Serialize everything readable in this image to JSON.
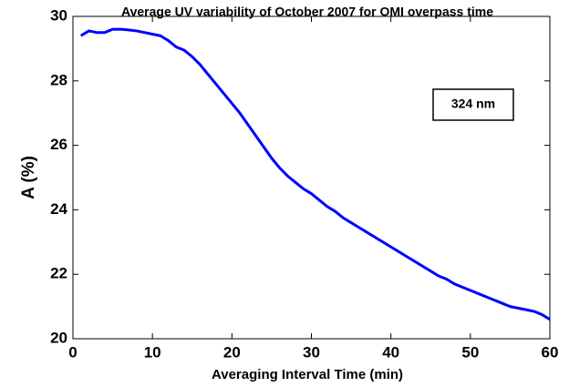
{
  "chart_data": {
    "type": "line",
    "title": "Average UV variability of October 2007 for OMI overpass time",
    "xlabel": "Averaging Interval Time (min)",
    "ylabel": "A (%)",
    "annotation": "324 nm",
    "color": "#0000ff",
    "x": [
      1,
      2,
      3,
      4,
      5,
      6,
      7,
      8,
      9,
      10,
      11,
      12,
      13,
      14,
      15,
      16,
      17,
      18,
      19,
      20,
      21,
      22,
      23,
      24,
      25,
      26,
      27,
      28,
      29,
      30,
      31,
      32,
      33,
      34,
      35,
      36,
      37,
      38,
      39,
      40,
      41,
      42,
      43,
      44,
      45,
      46,
      47,
      48,
      49,
      50,
      51,
      52,
      53,
      54,
      55,
      56,
      57,
      58,
      59,
      60
    ],
    "values": [
      29.4,
      29.55,
      29.5,
      29.5,
      29.6,
      29.6,
      29.58,
      29.55,
      29.5,
      29.45,
      29.4,
      29.25,
      29.05,
      28.95,
      28.75,
      28.5,
      28.2,
      27.9,
      27.6,
      27.3,
      27.0,
      26.65,
      26.3,
      25.95,
      25.6,
      25.3,
      25.05,
      24.85,
      24.65,
      24.5,
      24.3,
      24.1,
      23.95,
      23.75,
      23.6,
      23.45,
      23.3,
      23.15,
      23.0,
      22.85,
      22.7,
      22.55,
      22.4,
      22.25,
      22.1,
      21.95,
      21.85,
      21.7,
      21.6,
      21.5,
      21.4,
      21.3,
      21.2,
      21.1,
      21.0,
      20.95,
      20.9,
      20.85,
      20.75,
      20.6
    ],
    "xlim": [
      0,
      60
    ],
    "xticks": [
      0,
      10,
      20,
      30,
      40,
      50,
      60
    ],
    "ylim": [
      20,
      30
    ],
    "yticks": [
      20,
      22,
      24,
      26,
      28,
      30
    ]
  }
}
